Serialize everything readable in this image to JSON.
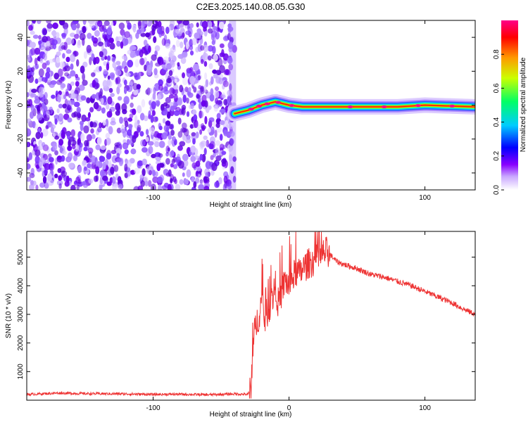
{
  "title": "C2E3.2025.140.08.05.G30",
  "chart_data": [
    {
      "type": "heatmap",
      "xlabel": "Height of straight line (km)",
      "ylabel": "Frequency (Hz)",
      "xlim": [
        -193,
        137
      ],
      "ylim": [
        -50,
        50
      ],
      "x_ticks": [
        -100,
        0,
        100
      ],
      "y_ticks": [
        -40,
        -20,
        0,
        20,
        40
      ],
      "x_tick_labels": [
        "-100",
        "0",
        "100"
      ],
      "y_tick_labels": [
        "-40",
        "-20",
        "0",
        "20",
        "40"
      ],
      "grid": false,
      "noise_region_x": [
        -193,
        -40
      ],
      "signal_track": [
        {
          "x": -40,
          "y": -5
        },
        {
          "x": -30,
          "y": -3
        },
        {
          "x": -20,
          "y": 0
        },
        {
          "x": -10,
          "y": 2
        },
        {
          "x": 0,
          "y": 0
        },
        {
          "x": 10,
          "y": -1
        },
        {
          "x": 40,
          "y": -1
        },
        {
          "x": 80,
          "y": -1
        },
        {
          "x": 100,
          "y": 0
        },
        {
          "x": 137,
          "y": -1
        }
      ],
      "colorbar": {
        "label": "Normalized spectral amplitude",
        "range": [
          0,
          1
        ],
        "ticks": [
          0.0,
          0.2,
          0.4,
          0.6,
          0.8
        ],
        "tick_labels": [
          "0.0",
          "0.2",
          "0.4",
          "0.6",
          "0.8"
        ],
        "colors": [
          "#ffffff",
          "#8800ff",
          "#0000ff",
          "#00ccff",
          "#00ff66",
          "#ccff00",
          "#ff9900",
          "#ff0000",
          "#ff0088"
        ]
      }
    },
    {
      "type": "line",
      "xlabel": "Height of straight line (km)",
      "ylabel": "SNR (10 * v/v)",
      "xlim": [
        -193,
        137
      ],
      "ylim": [
        0,
        5900
      ],
      "x_ticks": [
        -100,
        0,
        100
      ],
      "y_ticks": [
        1000,
        2000,
        3000,
        4000,
        5000
      ],
      "x_tick_labels": [
        "-100",
        "0",
        "100"
      ],
      "y_tick_labels": [
        "1000",
        "2000",
        "3000",
        "4000",
        "5000"
      ],
      "grid": false,
      "color": "#ee3333",
      "series": [
        {
          "x": [
            -193,
            -170,
            -150,
            -120,
            -100,
            -80,
            -60,
            -40,
            -30,
            -28,
            -27,
            -25,
            -22,
            -20,
            -18,
            -15,
            -12,
            -10,
            -8,
            -5,
            -3,
            0,
            3,
            5,
            8,
            10,
            15,
            20,
            25,
            28,
            30,
            35,
            40,
            50,
            60,
            70,
            80,
            90,
            100,
            110,
            120,
            130,
            137
          ],
          "values": [
            200,
            250,
            230,
            220,
            200,
            210,
            190,
            220,
            200,
            300,
            1500,
            2500,
            3000,
            3500,
            2800,
            3200,
            3600,
            4000,
            3400,
            3800,
            4200,
            4000,
            4300,
            4500,
            4400,
            4600,
            4800,
            4900,
            5100,
            5200,
            5100,
            4850,
            4750,
            4600,
            4400,
            4300,
            4150,
            4000,
            3800,
            3600,
            3400,
            3150,
            3000
          ]
        }
      ]
    }
  ]
}
